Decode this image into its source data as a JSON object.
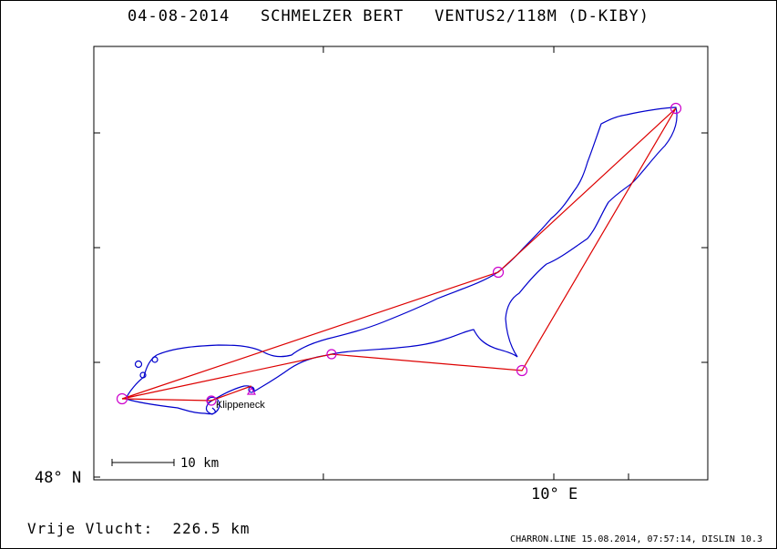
{
  "title": {
    "date": "04-08-2014",
    "pilot": "SCHMELZER BERT",
    "glider": "VENTUS2/118M (D-KIBY)"
  },
  "axes": {
    "lat_label": "48° N",
    "lon_label": "10° E"
  },
  "scale_bar": {
    "label": "10 km"
  },
  "takeoff_label": "Klippeneck",
  "distance": {
    "label": "Vrije Vlucht:",
    "value": "226.5 km"
  },
  "footer": "CHARRON.LINE 15.08.2014, 07:57:14, DISLIN 10.3",
  "colors": {
    "track": "#0000cc",
    "task": "#dd0000",
    "turnpoint": "#cc00cc",
    "frame": "#000000"
  }
}
